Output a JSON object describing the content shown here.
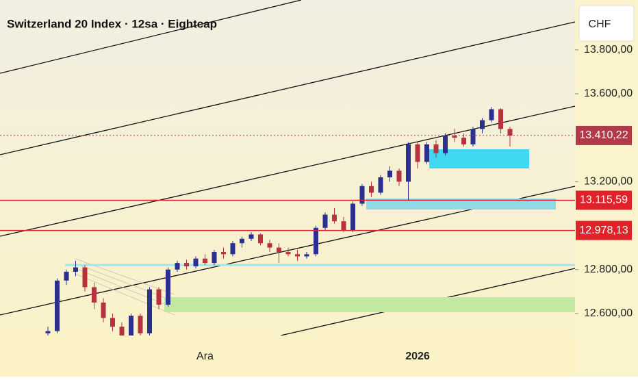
{
  "chart_data": {
    "type": "candlestick",
    "title": "Switzerland 20 Index · 12sa · Eightcap",
    "currency": "CHF",
    "categories": [
      null,
      null,
      null,
      null,
      null,
      null,
      null,
      null,
      null,
      null,
      null,
      null,
      null,
      null,
      null,
      null,
      null,
      "Ara",
      null,
      null,
      null,
      null,
      null,
      null,
      null,
      null,
      null,
      null,
      null,
      null,
      null,
      null,
      null,
      null,
      null,
      null,
      null,
      null,
      null,
      null,
      "2026",
      null,
      null,
      null,
      null,
      null,
      null,
      null,
      null,
      null,
      null
    ],
    "open": [
      12510,
      12520,
      12750,
      12790,
      12810,
      12720,
      12650,
      12580,
      12540,
      12500,
      12590,
      12510,
      12710,
      12640,
      12800,
      12830,
      12815,
      12850,
      12830,
      12880,
      12870,
      12920,
      12940,
      12960,
      12920,
      12900,
      12880,
      12870,
      12860,
      12870,
      12990,
      13050,
      13020,
      12980,
      13100,
      13180,
      13150,
      13220,
      13250,
      13200,
      13370,
      13290,
      13370,
      13330,
      13410,
      13400,
      13370,
      13440,
      13480,
      13530,
      13440
    ],
    "high": [
      12540,
      12760,
      12800,
      12840,
      12820,
      12740,
      12670,
      12600,
      12560,
      12600,
      12600,
      12720,
      12720,
      12810,
      12840,
      12845,
      12860,
      12870,
      12890,
      12900,
      12930,
      12950,
      12970,
      12965,
      12935,
      12920,
      12900,
      12890,
      12880,
      13000,
      13060,
      13080,
      13040,
      13110,
      13190,
      13200,
      13230,
      13270,
      13260,
      13380,
      13380,
      13380,
      13390,
      13420,
      13440,
      13420,
      13450,
      13490,
      13540,
      13535,
      13450
    ],
    "low": [
      12490,
      12510,
      12730,
      12770,
      12700,
      12620,
      12560,
      12520,
      12480,
      12480,
      12500,
      12500,
      12620,
      12630,
      12790,
      12800,
      12805,
      12820,
      12820,
      12850,
      12860,
      12900,
      12930,
      12910,
      12880,
      12830,
      12860,
      12840,
      12850,
      12860,
      12980,
      13010,
      12970,
      12970,
      13090,
      13130,
      13140,
      13200,
      13180,
      13115,
      13260,
      13280,
      13310,
      13320,
      13380,
      13360,
      13360,
      13420,
      13470,
      13420,
      13360
    ],
    "close": [
      12520,
      12750,
      12790,
      12810,
      12720,
      12650,
      12580,
      12540,
      12500,
      12590,
      12510,
      12710,
      12640,
      12800,
      12830,
      12815,
      12850,
      12830,
      12880,
      12870,
      12920,
      12940,
      12960,
      12920,
      12900,
      12880,
      12870,
      12860,
      12870,
      12990,
      13050,
      13020,
      12980,
      13100,
      13180,
      13150,
      13220,
      13250,
      13200,
      13370,
      13290,
      13370,
      13330,
      13410,
      13400,
      13370,
      13440,
      13480,
      13530,
      13440,
      13410
    ],
    "up_color": "#2b2f8e",
    "down_color": "#b8323e",
    "ylim": [
      12500,
      14027
    ],
    "yticks": [
      {
        "value": 12600,
        "label": "12.600,00"
      },
      {
        "value": 12800,
        "label": "12.800,00"
      },
      {
        "value": 13200,
        "label": "13.200,00"
      },
      {
        "value": 13600,
        "label": "13.600,00"
      },
      {
        "value": 13800,
        "label": "13.800,00"
      }
    ],
    "price_lines": [
      {
        "value": 13410.22,
        "label": "13.410,22",
        "color": "#b03a48"
      },
      {
        "value": 13115.59,
        "label": "13.115,59",
        "color": "#e0232b"
      },
      {
        "value": 12978.13,
        "label": "12.978,13",
        "color": "#e0232b"
      }
    ]
  }
}
